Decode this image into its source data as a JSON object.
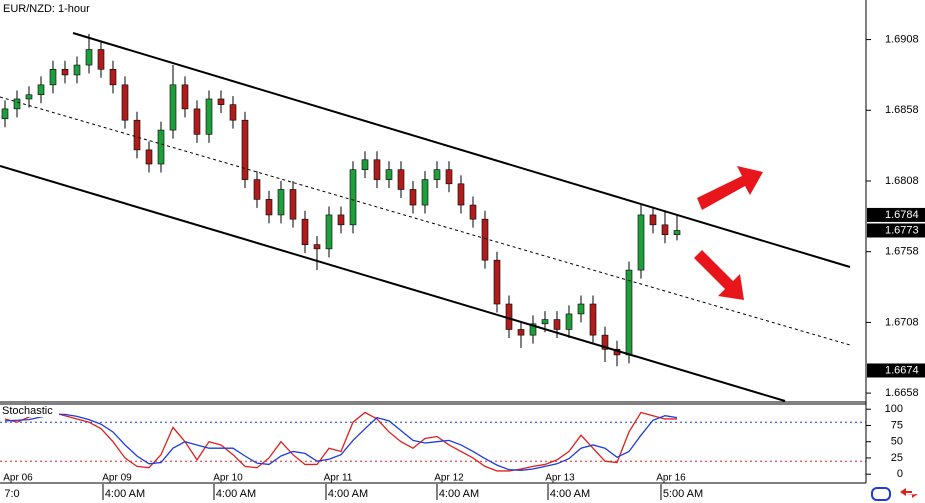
{
  "chart_data": [
    {
      "type": "candlestick",
      "title": "EUR/NZD: 1-hour",
      "open": [
        1.6852,
        1.6859,
        1.6866,
        1.6869,
        1.6876,
        1.6887,
        1.6883,
        1.689,
        1.6901,
        1.6887,
        1.6876,
        1.6851,
        1.683,
        1.682,
        1.6844,
        1.6876,
        1.6859,
        1.6841,
        1.6866,
        1.6862,
        1.6851,
        1.6809,
        1.6795,
        1.6784,
        1.6802,
        1.6781,
        1.6763,
        1.676,
        1.6784,
        1.6777,
        1.6816,
        1.6823,
        1.6809,
        1.6816,
        1.6802,
        1.6791,
        1.6809,
        1.6816,
        1.6806,
        1.6791,
        1.6781,
        1.6752,
        1.6721,
        1.6703,
        1.6699,
        1.6707,
        1.671,
        1.6703,
        1.6714,
        1.6721,
        1.6699,
        1.6689,
        1.6685,
        1.6745,
        1.6784,
        1.6777,
        1.677
      ],
      "high": [
        1.6865,
        1.6872,
        1.6875,
        1.6882,
        1.6893,
        1.6893,
        1.6896,
        1.6912,
        1.6907,
        1.6893,
        1.6882,
        1.6857,
        1.6836,
        1.685,
        1.689,
        1.6882,
        1.6865,
        1.6872,
        1.6872,
        1.6868,
        1.6857,
        1.6815,
        1.6801,
        1.6808,
        1.6808,
        1.6787,
        1.6769,
        1.679,
        1.679,
        1.6822,
        1.6829,
        1.6829,
        1.6822,
        1.6822,
        1.6808,
        1.6815,
        1.6822,
        1.6822,
        1.6812,
        1.6797,
        1.6787,
        1.6758,
        1.6727,
        1.6709,
        1.6713,
        1.6716,
        1.6716,
        1.672,
        1.6727,
        1.6727,
        1.6705,
        1.6695,
        1.6751,
        1.6792,
        1.679,
        1.6787,
        1.6784
      ],
      "low": [
        1.6846,
        1.6853,
        1.686,
        1.6863,
        1.687,
        1.6877,
        1.6877,
        1.6884,
        1.6881,
        1.687,
        1.6845,
        1.6824,
        1.6814,
        1.6814,
        1.6838,
        1.6853,
        1.6835,
        1.6835,
        1.6856,
        1.6845,
        1.6803,
        1.6789,
        1.6778,
        1.6778,
        1.6775,
        1.6757,
        1.6745,
        1.6754,
        1.6771,
        1.6771,
        1.681,
        1.6803,
        1.6803,
        1.6796,
        1.6785,
        1.6785,
        1.6803,
        1.68,
        1.6785,
        1.6775,
        1.6746,
        1.6715,
        1.6697,
        1.669,
        1.6693,
        1.6701,
        1.6697,
        1.6697,
        1.6708,
        1.6693,
        1.668,
        1.6677,
        1.6679,
        1.6739,
        1.6771,
        1.6764,
        1.6766
      ],
      "close": [
        1.6859,
        1.6866,
        1.6869,
        1.6876,
        1.6887,
        1.6883,
        1.689,
        1.6901,
        1.6887,
        1.6876,
        1.6851,
        1.683,
        1.682,
        1.6844,
        1.6876,
        1.6859,
        1.6841,
        1.6866,
        1.6862,
        1.6851,
        1.6809,
        1.6795,
        1.6784,
        1.6802,
        1.6781,
        1.6763,
        1.676,
        1.6784,
        1.6777,
        1.6816,
        1.6823,
        1.6809,
        1.6816,
        1.6802,
        1.6791,
        1.6809,
        1.6816,
        1.6806,
        1.6791,
        1.6781,
        1.6752,
        1.6721,
        1.6703,
        1.6699,
        1.6707,
        1.671,
        1.6703,
        1.6714,
        1.6721,
        1.6699,
        1.6689,
        1.6685,
        1.6745,
        1.6784,
        1.6777,
        1.677,
        1.6773
      ],
      "up_color": "#1f9e3c",
      "down_color": "#b01c1c",
      "ylim": [
        1.6651,
        1.6936
      ],
      "yticks": [
        1.6908,
        1.6858,
        1.6808,
        1.6758,
        1.6708,
        1.6658
      ],
      "price_labels": [
        1.6784,
        1.6773,
        1.6674
      ],
      "x_labels": [
        {
          "date": "Apr 06",
          "time": "7:0"
        },
        {
          "date": "Apr 09",
          "time": "4:00 AM"
        },
        {
          "date": "Apr 10",
          "time": "4:00 AM"
        },
        {
          "date": "Apr 11",
          "time": "4:00 AM"
        },
        {
          "date": "Apr 12",
          "time": "4:00 AM"
        },
        {
          "date": "Apr 13",
          "time": "4:00 AM"
        },
        {
          "date": "Apr 16",
          "time": "5:00 AM"
        }
      ]
    },
    {
      "type": "line",
      "title": "Stochastic",
      "series": [
        {
          "color": "#e0201c",
          "values": [
            85,
            80,
            88,
            92,
            95,
            90,
            85,
            80,
            70,
            50,
            25,
            12,
            10,
            30,
            72,
            50,
            22,
            50,
            45,
            30,
            12,
            10,
            25,
            50,
            30,
            15,
            15,
            40,
            35,
            80,
            95,
            85,
            65,
            50,
            40,
            55,
            58,
            45,
            35,
            25,
            12,
            5,
            5,
            8,
            12,
            15,
            22,
            35,
            60,
            40,
            20,
            18,
            65,
            95,
            90,
            85,
            85
          ]
        },
        {
          "color": "#1c3ce0",
          "values": [
            82,
            83,
            84,
            88,
            92,
            92,
            89,
            84,
            77,
            65,
            45,
            28,
            16,
            18,
            40,
            50,
            45,
            40,
            40,
            40,
            28,
            17,
            15,
            28,
            35,
            32,
            20,
            23,
            30,
            52,
            70,
            87,
            82,
            67,
            52,
            48,
            50,
            52,
            45,
            35,
            24,
            14,
            7,
            6,
            8,
            12,
            16,
            24,
            40,
            45,
            40,
            26,
            35,
            60,
            83,
            90,
            87
          ]
        }
      ],
      "levels": [
        {
          "value": 80,
          "color": "#1c3ce0"
        },
        {
          "value": 20,
          "color": "#e0201c"
        }
      ],
      "ylim": [
        -12,
        108
      ],
      "yticks": [
        100,
        75,
        50,
        25,
        0
      ]
    }
  ]
}
